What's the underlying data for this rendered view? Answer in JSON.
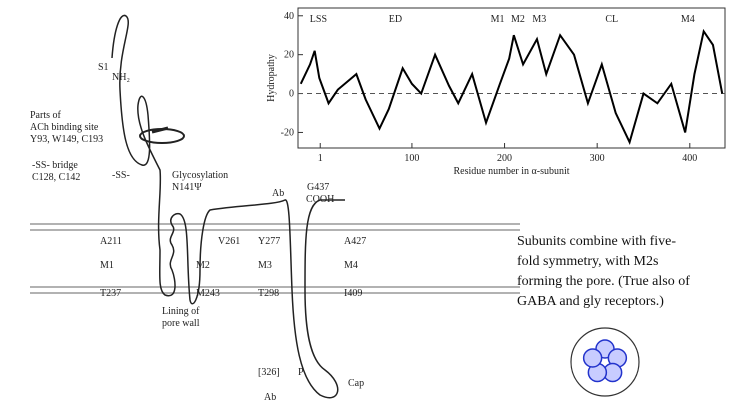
{
  "chart_data": {
    "type": "line",
    "x_label": "Residue number in α-subunit",
    "y_label": "Hydropathy",
    "x": [
      -20,
      -10,
      -5,
      0,
      10,
      20,
      30,
      40,
      50,
      65,
      75,
      90,
      100,
      110,
      125,
      140,
      150,
      165,
      180,
      195,
      205,
      210,
      220,
      235,
      245,
      260,
      275,
      290,
      305,
      320,
      335,
      350,
      365,
      380,
      395,
      405,
      415,
      425,
      435
    ],
    "series": [
      {
        "name": "Hydropathy",
        "color": "#000000",
        "values": [
          5,
          15,
          22,
          8,
          -5,
          2,
          6,
          10,
          -3,
          -18,
          -8,
          13,
          5,
          0,
          20,
          4,
          -5,
          10,
          -15,
          5,
          18,
          30,
          15,
          28,
          10,
          30,
          20,
          -5,
          15,
          -10,
          -25,
          0,
          -5,
          5,
          -20,
          10,
          32,
          25,
          0
        ]
      }
    ],
    "xlim": [
      -23,
      438
    ],
    "ylim": [
      -28,
      44
    ],
    "xticks": [
      1,
      100,
      200,
      300,
      400
    ],
    "yticks": [
      40,
      20,
      0,
      -20
    ],
    "zero_line": true,
    "segment_labels": [
      "LSS",
      "ED",
      "M1",
      "M2",
      "M3",
      "CL",
      "M4"
    ]
  },
  "diagram": {
    "labels": [
      "S1",
      "NH₂",
      "Parts of",
      "ACh binding site",
      "Y93, W149, C193",
      "-SS- bridge",
      "C128, C142",
      "-SS-",
      "Glycosylation",
      "N141Ψ",
      "Ab",
      "G437",
      "COOH",
      "A211",
      "V261",
      "Y277",
      "A427",
      "M1",
      "M2",
      "M3",
      "M4",
      "T237",
      "M243",
      "T298",
      "I409",
      "Lining of",
      "pore wall",
      "[326]",
      "P",
      "Ab",
      "Cap"
    ],
    "caption": [
      "Subunits combine with five-",
      "fold symmetry, with M2s",
      "forming the pore. (True also of",
      "GABA and gly receptors.)"
    ]
  }
}
